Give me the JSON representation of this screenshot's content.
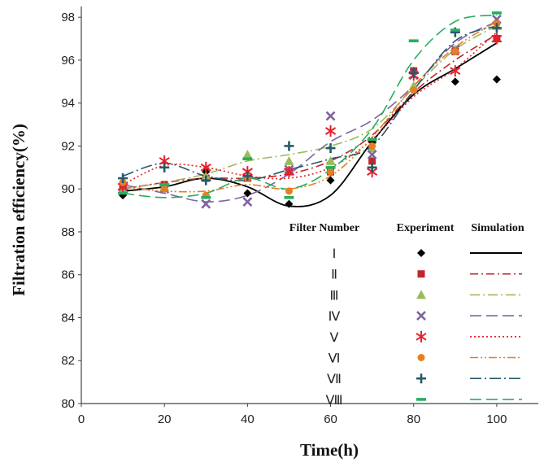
{
  "chart_data": {
    "type": "scatter",
    "title": "",
    "xlabel": "Time(h)",
    "ylabel": "Filtration efficiency(%)",
    "xlim": [
      0,
      110
    ],
    "ylim": [
      80,
      98.5
    ],
    "xticks": [
      0,
      20,
      40,
      60,
      80,
      100
    ],
    "yticks": [
      80,
      82,
      84,
      86,
      88,
      90,
      92,
      94,
      96,
      98
    ],
    "legend": {
      "title": "Filter Number",
      "experiment_header": "Experiment",
      "simulation_header": "Simulation",
      "placement": "lower-right"
    },
    "x": [
      10,
      20,
      30,
      40,
      50,
      60,
      70,
      80,
      90,
      100
    ],
    "series": [
      {
        "name": "Ⅰ",
        "color": "#000000",
        "marker": "diamond",
        "dash": "",
        "experiment": [
          [
            10,
            89.7
          ],
          [
            20,
            90.1
          ],
          [
            30,
            90.8
          ],
          [
            40,
            89.8
          ],
          [
            50,
            89.3
          ],
          [
            60,
            90.4
          ],
          [
            70,
            92.2
          ],
          [
            80,
            95.5
          ],
          [
            90,
            95.0
          ],
          [
            100,
            95.1
          ]
        ],
        "simulation": [
          [
            10,
            89.9
          ],
          [
            20,
            90.1
          ],
          [
            30,
            90.5
          ],
          [
            40,
            90.1
          ],
          [
            50,
            89.2
          ],
          [
            60,
            89.7
          ],
          [
            70,
            92.2
          ],
          [
            80,
            94.4
          ],
          [
            90,
            95.6
          ],
          [
            100,
            96.8
          ]
        ]
      },
      {
        "name": "Ⅱ",
        "color": "#c0272d",
        "marker": "square",
        "dash": "10,4,2,4",
        "experiment": [
          [
            10,
            90.0
          ],
          [
            20,
            90.2
          ],
          [
            30,
            90.5
          ],
          [
            40,
            90.5
          ],
          [
            50,
            90.8
          ],
          [
            60,
            90.8
          ],
          [
            70,
            91.3
          ],
          [
            80,
            95.5
          ],
          [
            90,
            96.4
          ],
          [
            100,
            97.0
          ]
        ],
        "simulation": [
          [
            10,
            90.0
          ],
          [
            20,
            90.3
          ],
          [
            30,
            90.5
          ],
          [
            40,
            90.5
          ],
          [
            50,
            90.7
          ],
          [
            60,
            91.3
          ],
          [
            70,
            92.5
          ],
          [
            80,
            94.5
          ],
          [
            90,
            96.0
          ],
          [
            100,
            97.2
          ]
        ]
      },
      {
        "name": "Ⅲ",
        "color": "#9bbb59",
        "marker": "triangle",
        "dash": "12,4,2,4",
        "experiment": [
          [
            10,
            90.0
          ],
          [
            20,
            90.1
          ],
          [
            30,
            90.6
          ],
          [
            40,
            91.6
          ],
          [
            50,
            91.3
          ],
          [
            60,
            91.3
          ],
          [
            70,
            91.9
          ],
          [
            80,
            94.8
          ],
          [
            90,
            96.5
          ],
          [
            100,
            97.6
          ]
        ],
        "simulation": [
          [
            10,
            90.0
          ],
          [
            20,
            90.3
          ],
          [
            30,
            90.7
          ],
          [
            40,
            91.3
          ],
          [
            50,
            91.6
          ],
          [
            60,
            92.0
          ],
          [
            70,
            92.8
          ],
          [
            80,
            94.7
          ],
          [
            90,
            96.5
          ],
          [
            100,
            97.6
          ]
        ]
      },
      {
        "name": "Ⅳ",
        "color": "#8064a2",
        "marker": "x",
        "dash": "14,6",
        "experiment": [
          [
            10,
            90.1
          ],
          [
            20,
            90.0
          ],
          [
            30,
            89.3
          ],
          [
            40,
            89.4
          ],
          [
            50,
            90.9
          ],
          [
            60,
            93.4
          ],
          [
            70,
            91.6
          ],
          [
            80,
            95.3
          ],
          [
            90,
            96.5
          ],
          [
            100,
            97.9
          ]
        ],
        "simulation": [
          [
            10,
            90.2
          ],
          [
            20,
            89.8
          ],
          [
            30,
            89.4
          ],
          [
            40,
            89.7
          ],
          [
            50,
            90.7
          ],
          [
            60,
            92.2
          ],
          [
            70,
            93.2
          ],
          [
            80,
            94.8
          ],
          [
            90,
            96.8
          ],
          [
            100,
            97.8
          ]
        ]
      },
      {
        "name": "Ⅴ",
        "color": "#e8202a",
        "marker": "asterisk",
        "dash": "2,3",
        "experiment": [
          [
            10,
            90.1
          ],
          [
            20,
            91.3
          ],
          [
            30,
            91.0
          ],
          [
            40,
            90.8
          ],
          [
            50,
            90.8
          ],
          [
            60,
            92.7
          ],
          [
            70,
            90.8
          ],
          [
            80,
            95.3
          ],
          [
            90,
            95.5
          ],
          [
            100,
            97.0
          ]
        ],
        "simulation": [
          [
            10,
            90.2
          ],
          [
            20,
            91.1
          ],
          [
            30,
            91.0
          ],
          [
            40,
            90.6
          ],
          [
            50,
            90.5
          ],
          [
            60,
            91.0
          ],
          [
            70,
            92.3
          ],
          [
            80,
            94.3
          ],
          [
            90,
            95.6
          ],
          [
            100,
            97.3
          ]
        ]
      },
      {
        "name": "Ⅵ",
        "color": "#e67e22",
        "marker": "circle",
        "dash": "10,3,2,3,2,3",
        "experiment": [
          [
            10,
            90.3
          ],
          [
            20,
            90.0
          ],
          [
            30,
            89.7
          ],
          [
            40,
            90.5
          ],
          [
            50,
            89.9
          ],
          [
            60,
            90.8
          ],
          [
            70,
            92.0
          ],
          [
            80,
            94.6
          ],
          [
            90,
            96.4
          ],
          [
            100,
            97.7
          ]
        ],
        "simulation": [
          [
            10,
            90.1
          ],
          [
            20,
            89.9
          ],
          [
            30,
            89.9
          ],
          [
            40,
            90.2
          ],
          [
            50,
            90.0
          ],
          [
            60,
            90.6
          ],
          [
            70,
            92.4
          ],
          [
            80,
            94.8
          ],
          [
            90,
            96.6
          ],
          [
            100,
            97.8
          ]
        ]
      },
      {
        "name": "Ⅶ",
        "color": "#245a6b",
        "marker": "plus",
        "dash": "14,4,2,4",
        "experiment": [
          [
            10,
            90.5
          ],
          [
            20,
            91.0
          ],
          [
            30,
            90.4
          ],
          [
            40,
            90.6
          ],
          [
            50,
            92.0
          ],
          [
            60,
            91.9
          ],
          [
            70,
            91.0
          ],
          [
            80,
            95.4
          ],
          [
            90,
            97.3
          ],
          [
            100,
            97.5
          ]
        ],
        "simulation": [
          [
            10,
            90.6
          ],
          [
            20,
            91.2
          ],
          [
            30,
            90.6
          ],
          [
            40,
            90.4
          ],
          [
            50,
            90.9
          ],
          [
            60,
            91.4
          ],
          [
            70,
            92.0
          ],
          [
            80,
            94.6
          ],
          [
            90,
            96.9
          ],
          [
            100,
            97.6
          ]
        ]
      },
      {
        "name": "Ⅷ",
        "color": "#27ae60",
        "marker": "dash",
        "dash": "14,6",
        "experiment": [
          [
            10,
            89.8
          ],
          [
            20,
            90.2
          ],
          [
            30,
            89.6
          ],
          [
            40,
            91.4
          ],
          [
            50,
            89.6
          ],
          [
            60,
            91.0
          ],
          [
            70,
            92.3
          ],
          [
            80,
            96.9
          ],
          [
            90,
            97.4
          ],
          [
            100,
            98.2
          ]
        ],
        "simulation": [
          [
            10,
            89.8
          ],
          [
            20,
            89.6
          ],
          [
            30,
            89.8
          ],
          [
            40,
            90.5
          ],
          [
            50,
            90.0
          ],
          [
            60,
            90.9
          ],
          [
            70,
            92.8
          ],
          [
            80,
            96.0
          ],
          [
            90,
            97.8
          ],
          [
            100,
            98.1
          ]
        ]
      }
    ]
  }
}
